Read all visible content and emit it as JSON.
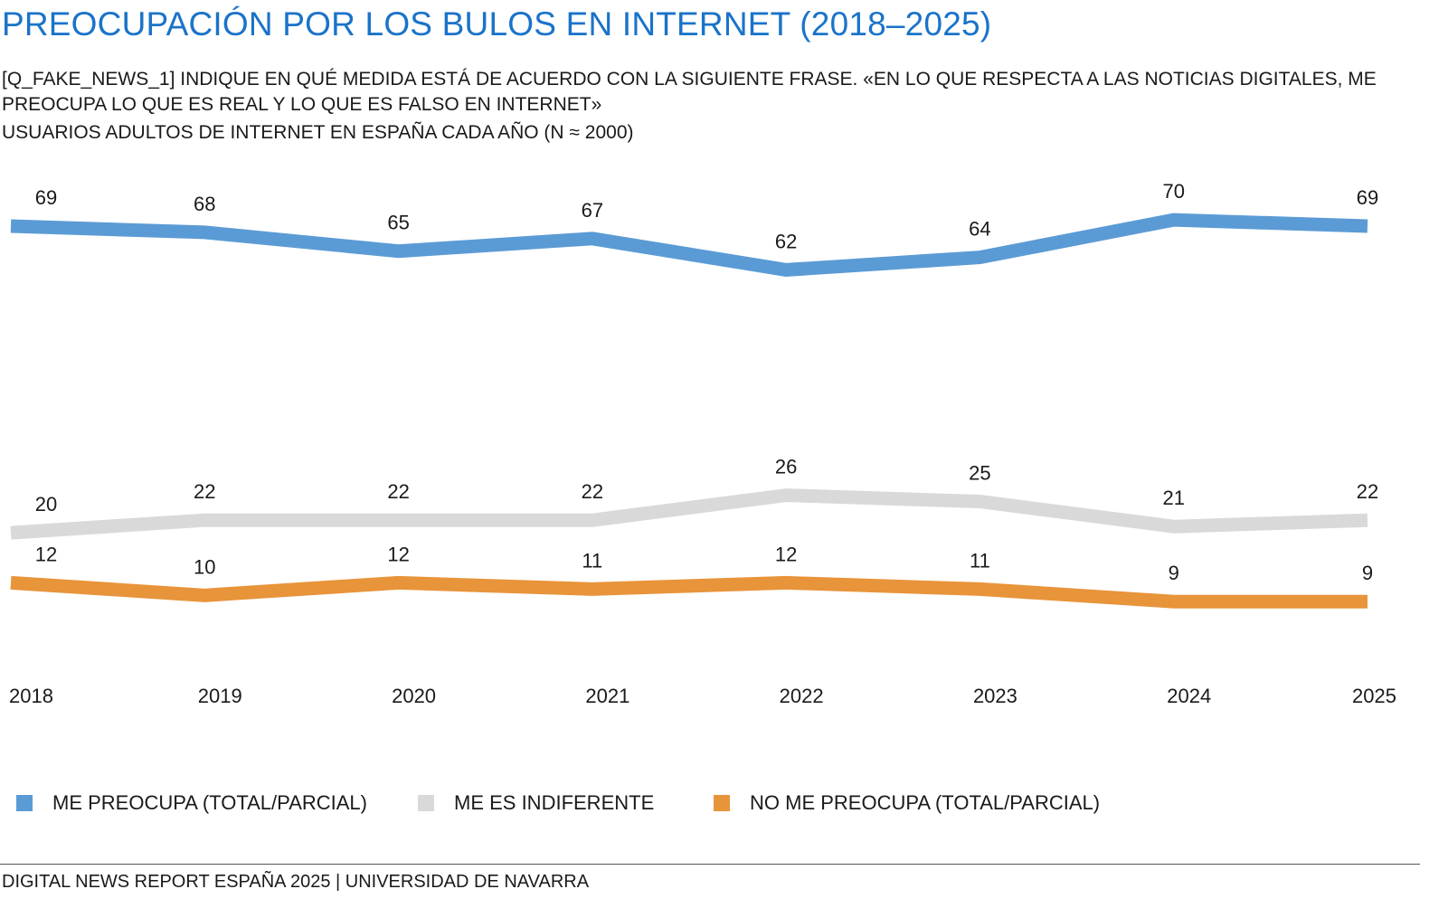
{
  "header": {
    "title": "PREOCUPACIÓN POR LOS BULOS EN INTERNET (2018–2025)",
    "subtitle": "[Q_FAKE_NEWS_1] INDIQUE EN QUÉ MEDIDA ESTÁ DE ACUERDO CON LA SIGUIENTE FRASE. «EN LO QUE RESPECTA A LAS NOTICIAS DIGITALES, ME PREOCUPA LO QUE ES REAL Y LO QUE ES FALSO EN INTERNET»",
    "sample": "USUARIOS ADULTOS DE INTERNET EN ESPAÑA CADA AÑO (N ≈ 2000)"
  },
  "chart_data": {
    "type": "line",
    "x": [
      "2018",
      "2019",
      "2020",
      "2021",
      "2022",
      "2023",
      "2024",
      "2025"
    ],
    "series": [
      {
        "name": "ME PREOCUPA (TOTAL/PARCIAL)",
        "color": "#5b9bd5",
        "values": [
          69,
          68,
          65,
          67,
          62,
          64,
          70,
          69
        ]
      },
      {
        "name": "ME ES INDIFERENTE",
        "color": "#d9d9d9",
        "values": [
          20,
          22,
          22,
          22,
          26,
          25,
          21,
          22
        ]
      },
      {
        "name": "NO ME PREOCUPA (TOTAL/PARCIAL)",
        "color": "#e8943a",
        "values": [
          12,
          10,
          12,
          11,
          12,
          11,
          9,
          9
        ]
      }
    ],
    "data_labels": true,
    "grid": false,
    "y_axis_visible": false,
    "legend_position": "bottom"
  },
  "footer": {
    "source": "DIGITAL NEWS REPORT ESPAÑA 2025 | UNIVERSIDAD DE NAVARRA"
  }
}
